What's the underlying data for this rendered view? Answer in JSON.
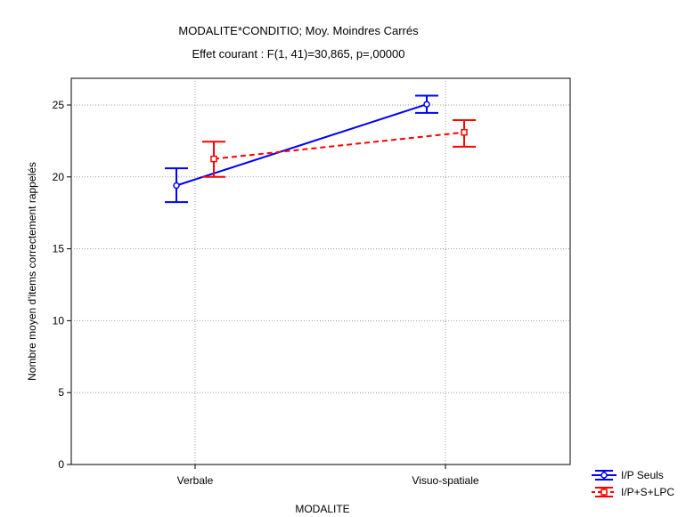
{
  "chart_data": {
    "type": "line",
    "title": "MODALITE*CONDITIO; Moy. Moindres Carrés",
    "subtitle": "Effet courant : F(1, 41)=30,865, p=,00000",
    "xlabel": "MODALITE",
    "ylabel": "Nombre moyen d'items correctement rappelés",
    "categories": [
      "Verbale",
      "Visuo-spatiale"
    ],
    "ylim": [
      0,
      27.5
    ],
    "yticks": [
      0,
      5,
      10,
      15,
      20,
      25
    ],
    "grid": true,
    "legend_position": "bottom-right",
    "series": [
      {
        "name": "I/P Seuls",
        "color": "#0000ff",
        "line_style": "solid",
        "marker": "circle",
        "values": [
          19.4,
          25.05
        ],
        "error_low": [
          18.25,
          24.45
        ],
        "error_high": [
          20.6,
          25.65
        ]
      },
      {
        "name": "I/P+S+LPC",
        "color": "#ff0000",
        "line_style": "dashed",
        "marker": "square",
        "values": [
          21.25,
          23.1
        ],
        "error_low": [
          20.0,
          22.1
        ],
        "error_high": [
          22.45,
          23.95
        ]
      }
    ]
  }
}
